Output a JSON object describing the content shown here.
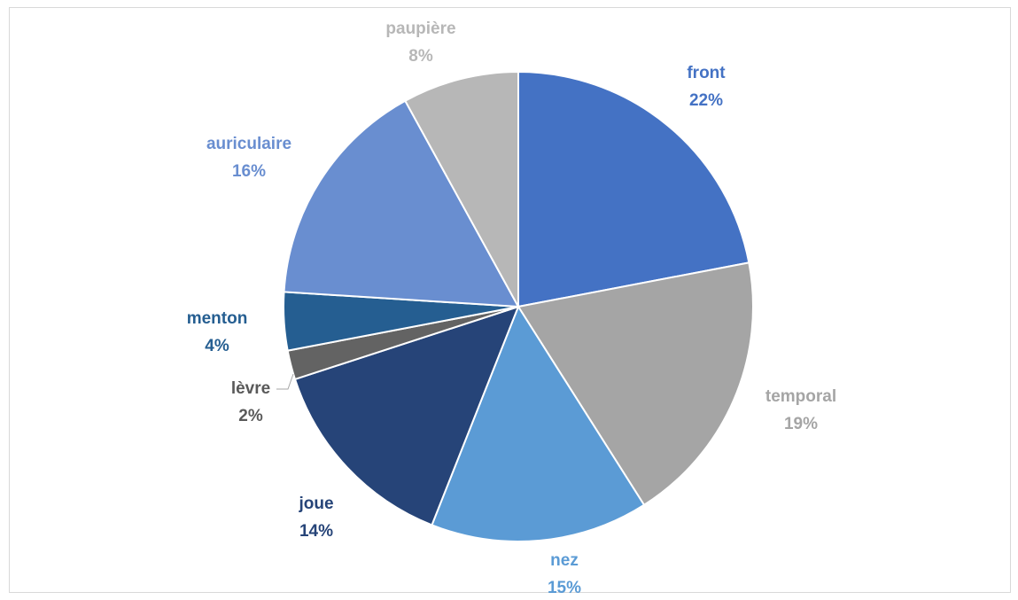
{
  "chart_data": {
    "type": "pie",
    "title": "",
    "show_legend": false,
    "data_labels": "category-and-percent",
    "slices": [
      {
        "label": "front",
        "percent_label": "22%",
        "value": 22,
        "color": "#4472C4"
      },
      {
        "label": "temporal",
        "percent_label": "19%",
        "value": 19,
        "color": "#A5A5A5"
      },
      {
        "label": "nez",
        "percent_label": "15%",
        "value": 15,
        "color": "#5B9BD5"
      },
      {
        "label": "joue",
        "percent_label": "14%",
        "value": 14,
        "color": "#264478"
      },
      {
        "label": "lèvre",
        "percent_label": "2%",
        "value": 2,
        "color": "#636363"
      },
      {
        "label": "menton",
        "percent_label": "4%",
        "value": 4,
        "color": "#255E91"
      },
      {
        "label": "auriculaire",
        "percent_label": "16%",
        "value": 16,
        "color": "#698ED0"
      },
      {
        "label": "paupière",
        "percent_label": "8%",
        "value": 8,
        "color": "#B7B7B7"
      }
    ]
  }
}
